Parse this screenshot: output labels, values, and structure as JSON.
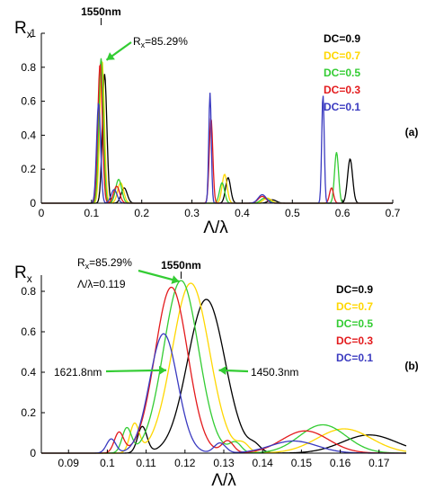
{
  "chart_data": [
    {
      "panel_label": "(a)",
      "type": "line",
      "ylabel": "R",
      "ylabel_sub": "x",
      "xlabel": "Λ/λ",
      "xlim": [
        0,
        0.7
      ],
      "ylim": [
        0,
        1
      ],
      "x_ticks": [
        "0",
        "0.1",
        "0.2",
        "0.3",
        "0.4",
        "0.5",
        "0.6",
        "0.7"
      ],
      "x_tick_values": [
        0,
        0.1,
        0.2,
        0.3,
        0.4,
        0.5,
        0.6,
        0.7
      ],
      "y_ticks": [
        "0",
        "0.2",
        "0.4",
        "0.6",
        "0.8",
        "1"
      ],
      "y_tick_values": [
        0,
        0.2,
        0.4,
        0.6,
        0.8,
        1
      ],
      "wavelength_marker": {
        "label": "1550nm",
        "x": 0.119
      },
      "annotations": [
        {
          "text": "R",
          "sub": "x",
          "rest": "=85.29%",
          "x": 0.119,
          "y": 0.8529
        }
      ],
      "legend": [
        {
          "label": "DC=0.9",
          "color": "#000000"
        },
        {
          "label": "DC=0.7",
          "color": "#ffd700"
        },
        {
          "label": "DC=0.5",
          "color": "#33cc33"
        },
        {
          "label": "DC=0.3",
          "color": "#e31a1c"
        },
        {
          "label": "DC=0.1",
          "color": "#3a3ac0"
        }
      ],
      "series": [
        {
          "name": "DC=0.9",
          "color": "#000000",
          "peaks": [
            [
              0.126,
              0.76,
              0.0045
            ],
            [
              0.165,
              0.09,
              0.006
            ],
            [
              0.372,
              0.15,
              0.005
            ],
            [
              0.615,
              0.26,
              0.005
            ],
            [
              0.46,
              0.02,
              0.008
            ]
          ]
        },
        {
          "name": "DC=0.7",
          "color": "#ffd700",
          "peaks": [
            [
              0.121,
              0.84,
              0.0045
            ],
            [
              0.158,
              0.12,
              0.006
            ],
            [
              0.365,
              0.17,
              0.005
            ],
            [
              0.45,
              0.03,
              0.008
            ]
          ]
        },
        {
          "name": "DC=0.5",
          "color": "#33cc33",
          "peaks": [
            [
              0.119,
              0.853,
              0.0045
            ],
            [
              0.154,
              0.14,
              0.006
            ],
            [
              0.36,
              0.12,
              0.005
            ],
            [
              0.588,
              0.3,
              0.004
            ],
            [
              0.445,
              0.03,
              0.008
            ]
          ]
        },
        {
          "name": "DC=0.3",
          "color": "#e31a1c",
          "peaks": [
            [
              0.117,
              0.82,
              0.0045
            ],
            [
              0.15,
              0.1,
              0.006
            ],
            [
              0.338,
              0.5,
              0.0035
            ],
            [
              0.578,
              0.09,
              0.004
            ],
            [
              0.44,
              0.04,
              0.008
            ]
          ]
        },
        {
          "name": "DC=0.1",
          "color": "#3a3ac0",
          "peaks": [
            [
              0.114,
              0.59,
              0.004
            ],
            [
              0.145,
              0.08,
              0.006
            ],
            [
              0.336,
              0.65,
              0.0025
            ],
            [
              0.561,
              0.64,
              0.0025
            ],
            [
              0.44,
              0.05,
              0.008
            ]
          ]
        }
      ]
    },
    {
      "panel_label": "(b)",
      "type": "line",
      "ylabel": "R",
      "ylabel_sub": "x",
      "xlabel": "Λ/λ",
      "xlim": [
        0.083,
        0.177
      ],
      "ylim": [
        0,
        0.88
      ],
      "x_ticks": [
        "0.09",
        "0.1",
        "0.11",
        "0.12",
        "0.13",
        "0.14",
        "0.15",
        "0.16",
        "0.17"
      ],
      "x_tick_values": [
        0.09,
        0.1,
        0.11,
        0.12,
        0.13,
        0.14,
        0.15,
        0.16,
        0.17
      ],
      "y_ticks": [
        "0",
        "0.2",
        "0.4",
        "0.6",
        "0.8"
      ],
      "y_tick_values": [
        0,
        0.2,
        0.4,
        0.6,
        0.8
      ],
      "wavelength_marker": {
        "label": "1550nm",
        "x": 0.119
      },
      "annotations": [
        {
          "text": "R",
          "sub": "x",
          "rest": "=85.29%",
          "x": 0.119,
          "y": 0.8529
        },
        {
          "text": "Λ/λ=0.119"
        },
        {
          "text": "1621.8nm",
          "x": 0.1145,
          "y": 0.41
        },
        {
          "text": "1450.3nm",
          "x": 0.1285,
          "y": 0.41
        }
      ],
      "legend": [
        {
          "label": "DC=0.9",
          "color": "#000000"
        },
        {
          "label": "DC=0.7",
          "color": "#ffd700"
        },
        {
          "label": "DC=0.5",
          "color": "#33cc33"
        },
        {
          "label": "DC=0.3",
          "color": "#e31a1c"
        },
        {
          "label": "DC=0.1",
          "color": "#3a3ac0"
        }
      ],
      "series": [
        {
          "name": "DC=0.9",
          "color": "#000000",
          "peaks": [
            [
              0.1255,
              0.76,
              0.0048
            ],
            [
              0.1675,
              0.09,
              0.007
            ],
            [
              0.109,
              0.13,
              0.0012
            ],
            [
              0.138,
              0.03,
              0.0015
            ]
          ]
        },
        {
          "name": "DC=0.7",
          "color": "#ffd700",
          "peaks": [
            [
              0.1215,
              0.84,
              0.0048
            ],
            [
              0.161,
              0.12,
              0.007
            ],
            [
              0.107,
              0.14,
              0.0012
            ],
            [
              0.135,
              0.04,
              0.0015
            ]
          ]
        },
        {
          "name": "DC=0.5",
          "color": "#33cc33",
          "peaks": [
            [
              0.119,
              0.853,
              0.0045
            ],
            [
              0.1555,
              0.14,
              0.006
            ],
            [
              0.105,
              0.12,
              0.0012
            ],
            [
              0.133,
              0.05,
              0.0015
            ]
          ]
        },
        {
          "name": "DC=0.3",
          "color": "#e31a1c",
          "peaks": [
            [
              0.1165,
              0.82,
              0.0042
            ],
            [
              0.151,
              0.11,
              0.006
            ],
            [
              0.103,
              0.1,
              0.0012
            ],
            [
              0.131,
              0.06,
              0.0015
            ]
          ]
        },
        {
          "name": "DC=0.1",
          "color": "#3a3ac0",
          "peaks": [
            [
              0.1145,
              0.59,
              0.0036
            ],
            [
              0.148,
              0.06,
              0.006
            ],
            [
              0.101,
              0.07,
              0.0012
            ],
            [
              0.129,
              0.05,
              0.0015
            ]
          ]
        }
      ]
    }
  ]
}
